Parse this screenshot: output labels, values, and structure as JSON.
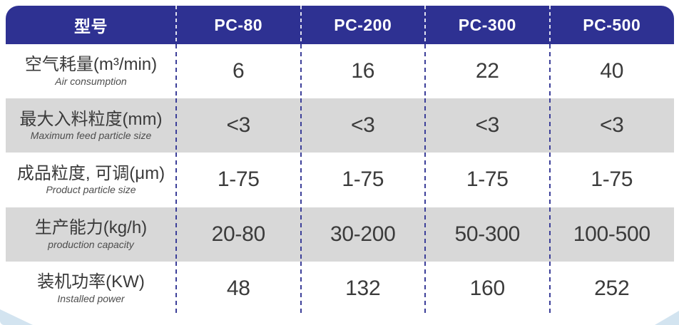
{
  "chart_data": {
    "type": "table",
    "columns": [
      "型号",
      "PC-80",
      "PC-200",
      "PC-300",
      "PC-500"
    ],
    "rows": [
      {
        "label_zh": "空气耗量(m³/min)",
        "label_en": "Air consumption",
        "values": [
          "6",
          "16",
          "22",
          "40"
        ]
      },
      {
        "label_zh": "最大入料粒度(mm)",
        "label_en": "Maximum feed particle size",
        "values": [
          "<3",
          "<3",
          "<3",
          "<3"
        ]
      },
      {
        "label_zh": "成品粒度, 可调(μm)",
        "label_en": "Product particle size",
        "values": [
          "1-75",
          "1-75",
          "1-75",
          "1-75"
        ]
      },
      {
        "label_zh": "生产能力(kg/h)",
        "label_en": "production capacity",
        "values": [
          "20-80",
          "30-200",
          "50-300",
          "100-500"
        ]
      },
      {
        "label_zh": "装机功率(KW)",
        "label_en": "Installed power",
        "values": [
          "48",
          "132",
          "160",
          "252"
        ]
      }
    ]
  },
  "colors": {
    "header_bg": "#2e3192",
    "header_text": "#ffffff",
    "row_bg": "#ffffff",
    "row_alt_bg": "#d8d8d8",
    "divider": "#3c3f99",
    "label_text": "#3a3a3a",
    "value_text": "#3b3b3b",
    "corner_decor": "#d3e4f0"
  }
}
